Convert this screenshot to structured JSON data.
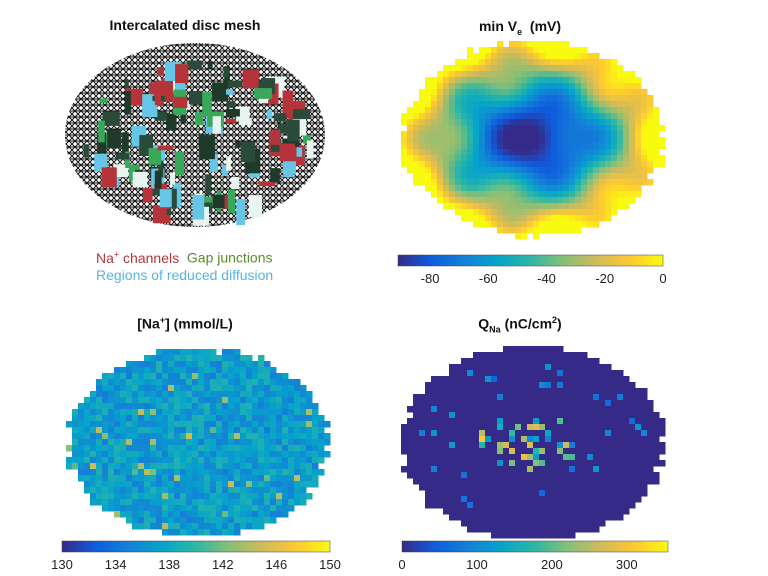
{
  "colormap": [
    "#352a87",
    "#0f5cdd",
    "#1481d6",
    "#06a4ca",
    "#2eb7a4",
    "#87bf77",
    "#d1bb59",
    "#fec832",
    "#f9fb0e"
  ],
  "panels": {
    "mesh": {
      "title": "Intercalated disc mesh",
      "legend": {
        "na_base": "Na",
        "na_sup": "+",
        "na_rest": " channels",
        "gap": "Gap junctions",
        "diffusion": "Regions of reduced diffusion"
      },
      "legend_colors": {
        "na": "#b5343a",
        "gap": "#5a8a2e",
        "diffusion": "#55b4e0"
      }
    },
    "ve": {
      "title_base": "min V",
      "title_sub": "e",
      "title_rest": "  (mV)"
    },
    "na": {
      "title_pre": "[Na",
      "title_sup": "+",
      "title_rest": "] (mmol/L)"
    },
    "q": {
      "title_base": "Q",
      "title_sub": "Na",
      "title_rest": " (nC/cm",
      "title_sup": "2",
      "title_end": ")"
    }
  },
  "chart_data": [
    {
      "type": "heatmap",
      "title": "min Ve (mV)",
      "colorbar": {
        "range": [
          -91,
          0
        ],
        "ticks": [
          -80,
          -60,
          -40,
          -20,
          0
        ],
        "tick_labels": [
          "-80",
          "-60",
          "-40",
          "-20",
          "0"
        ]
      }
    },
    {
      "type": "heatmap",
      "title": "[Na+] (mmol/L)",
      "colorbar": {
        "range": [
          130,
          150
        ],
        "ticks": [
          130,
          134,
          138,
          142,
          146,
          150
        ],
        "tick_labels": [
          "130",
          "134",
          "138",
          "142",
          "146",
          "150"
        ]
      }
    },
    {
      "type": "heatmap",
      "title": "QNa (nC/cm2)",
      "colorbar": {
        "range": [
          0,
          355
        ],
        "ticks": [
          0,
          100,
          200,
          300
        ],
        "tick_labels": [
          "0",
          "100",
          "200",
          "300"
        ]
      }
    }
  ]
}
